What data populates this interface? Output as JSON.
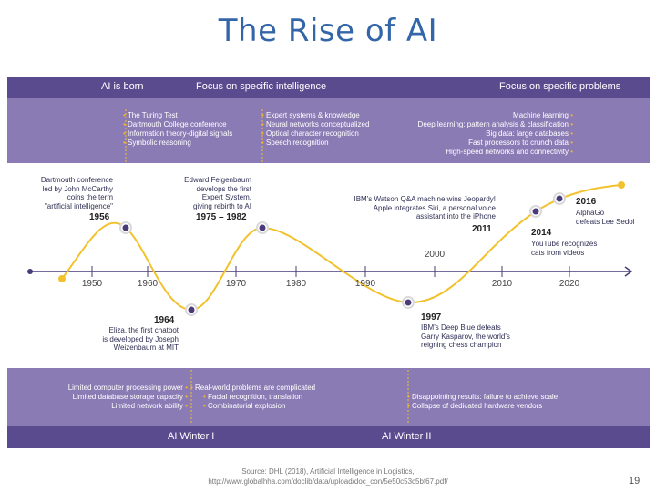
{
  "title": "The Rise of AI",
  "top_band": {
    "headers": [
      "AI is born",
      "Focus on specific intelligence",
      "Focus on specific problems"
    ],
    "col1": [
      "The Turing Test",
      "Dartmouth College conference",
      "Information theory-digital signals",
      "Symbolic reasoning"
    ],
    "col2": [
      "Expert systems & knowledge",
      "Neural networks conceptualized",
      "Optical character recognition",
      "Speech recognition"
    ],
    "col3": [
      "Machine learning",
      "Deep learning: pattern analysis & classification",
      "Big data: large databases",
      "Fast processors to crunch data",
      "High-speed networks and connectivity"
    ]
  },
  "bottom_band": {
    "col1": [
      "Limited computer processing power",
      "Limited database storage capacity",
      "Limited network ability"
    ],
    "col2_head": "Real-world problems are complicated",
    "col2": [
      "Facial recognition, translation",
      "Combinatorial explosion"
    ],
    "col3": [
      "Disappointing results: failure to achieve scale",
      "Collapse of dedicated hardware vendors"
    ],
    "winters": [
      "AI Winter I",
      "AI Winter II"
    ]
  },
  "axis_labels": [
    "1950",
    "1960",
    "1970",
    "1980",
    "1990",
    "2000",
    "2010",
    "2020"
  ],
  "events": {
    "e1956": {
      "year": "1956",
      "text": [
        "Dartmouth conference",
        "led by John McCarthy",
        "coins the term",
        "\"artificial intelligence\""
      ]
    },
    "e1964": {
      "year": "1964",
      "text": [
        "Eliza, the first chatbot",
        "is developed by Joseph",
        "Weizenbaum at MIT"
      ]
    },
    "e1975": {
      "year": "1975 – 1982",
      "text": [
        "Edward Feigenbaum",
        "develops the first",
        "Expert System,",
        "giving rebirth to AI"
      ]
    },
    "e1997": {
      "year": "1997",
      "text": [
        "IBM's Deep Blue defeats",
        "Garry Kasparov, the world's",
        "reigning chess champion"
      ]
    },
    "e2011": {
      "year": "2011",
      "text": [
        "IBM's Watson Q&A machine wins Jeopardy!",
        "Apple integrates Siri, a personal voice",
        "assistant into the iPhone"
      ]
    },
    "e2014": {
      "year": "2014",
      "text": [
        "YouTube recognizes",
        "cats from videos"
      ]
    },
    "e2016": {
      "year": "2016",
      "text": [
        "AlphaGo",
        "defeats Lee Sedol"
      ]
    }
  },
  "source": [
    "Source: DHL (2018), Artificial Intelligence in Logistics,",
    "http://www.globalhha.com/doclib/data/upload/doc_con/5e50c53c5bf67.pdf/"
  ],
  "page_number": "19",
  "colors": {
    "title": "#3366a8",
    "band": "#8b7bb4",
    "strip": "#5a4a8e",
    "curve": "#f2c22e",
    "dot": "#4a3a7a",
    "axis": "#4a3a7a"
  }
}
